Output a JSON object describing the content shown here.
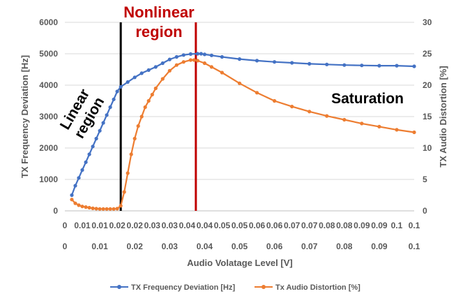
{
  "chart_data": {
    "type": "line",
    "x_tick_labels_row1": [
      "0",
      "0.01",
      "0.01",
      "0.02",
      "0.02",
      "0.03",
      "0.03",
      "0.04",
      "0.04",
      "0.05",
      "0.05",
      "0.06",
      "0.06",
      "0.07",
      "0.07",
      "0.08",
      "0.08",
      "0.09",
      "0.09",
      "0.1",
      "0.1"
    ],
    "x_tick_labels_row2": [
      "0",
      "0.01",
      "0.02",
      "0.03",
      "0.04",
      "0.05",
      "0.06",
      "0.07",
      "0.08",
      "0.09",
      "0.1"
    ],
    "xlabel": "Audio Volatage Level [V]",
    "ylabel_left": "TX Frequency Deviation [Hz]",
    "ylabel_right": "TX Audio Distortion [%]",
    "xlim": [
      0,
      0.1
    ],
    "ylim_left": [
      0,
      6000
    ],
    "ylim_right": [
      0,
      30
    ],
    "y_ticks_left": [
      "0",
      "1000",
      "2000",
      "3000",
      "4000",
      "5000",
      "6000"
    ],
    "y_ticks_right": [
      "0",
      "5",
      "10",
      "15",
      "20",
      "25",
      "30"
    ],
    "grid": "horizontal",
    "legend_position": "bottom",
    "series": [
      {
        "name": "TX Frequency Deviation [Hz]",
        "axis": "left",
        "color": "#4472c4",
        "x": [
          0.002,
          0.003,
          0.004,
          0.005,
          0.006,
          0.007,
          0.008,
          0.009,
          0.01,
          0.011,
          0.012,
          0.013,
          0.014,
          0.015,
          0.016,
          0.018,
          0.02,
          0.022,
          0.024,
          0.026,
          0.028,
          0.03,
          0.032,
          0.034,
          0.036,
          0.038,
          0.039,
          0.04,
          0.042,
          0.045,
          0.05,
          0.055,
          0.06,
          0.065,
          0.07,
          0.075,
          0.08,
          0.085,
          0.09,
          0.095,
          0.1
        ],
        "values": [
          500,
          800,
          1050,
          1300,
          1550,
          1800,
          2050,
          2300,
          2550,
          2800,
          3050,
          3300,
          3550,
          3800,
          3950,
          4100,
          4250,
          4380,
          4480,
          4580,
          4700,
          4820,
          4900,
          4960,
          4990,
          5000,
          5000,
          4980,
          4950,
          4900,
          4830,
          4780,
          4740,
          4710,
          4680,
          4660,
          4640,
          4630,
          4620,
          4620,
          4600
        ]
      },
      {
        "name": "Tx Audio Distortion [%]",
        "axis": "right",
        "color": "#ed7d31",
        "x": [
          0.002,
          0.003,
          0.004,
          0.005,
          0.006,
          0.007,
          0.008,
          0.009,
          0.01,
          0.011,
          0.012,
          0.013,
          0.014,
          0.015,
          0.016,
          0.017,
          0.018,
          0.019,
          0.02,
          0.021,
          0.022,
          0.023,
          0.024,
          0.025,
          0.026,
          0.028,
          0.03,
          0.032,
          0.034,
          0.036,
          0.037,
          0.038,
          0.04,
          0.042,
          0.045,
          0.05,
          0.055,
          0.06,
          0.065,
          0.07,
          0.075,
          0.08,
          0.085,
          0.09,
          0.095,
          0.1
        ],
        "values": [
          1.8,
          1.2,
          0.9,
          0.7,
          0.6,
          0.5,
          0.4,
          0.35,
          0.3,
          0.3,
          0.3,
          0.3,
          0.3,
          0.35,
          0.8,
          3.0,
          6.0,
          9.0,
          11.5,
          13.5,
          15.0,
          16.5,
          17.5,
          18.5,
          19.5,
          21.0,
          22.3,
          23.2,
          23.7,
          24.0,
          24.0,
          23.9,
          23.5,
          22.9,
          22.0,
          20.3,
          18.8,
          17.5,
          16.6,
          15.8,
          15.1,
          14.5,
          13.9,
          13.4,
          12.9,
          12.5
        ]
      }
    ],
    "markers": [
      {
        "x": 0.016,
        "color": "#000000"
      },
      {
        "x": 0.0375,
        "color": "#c00000"
      }
    ],
    "annotations": {
      "nonlinear_line1": "Nonlinear",
      "nonlinear_line2": "region",
      "linear_line1": "Linear",
      "linear_line2": "region",
      "saturation": "Saturation"
    }
  }
}
